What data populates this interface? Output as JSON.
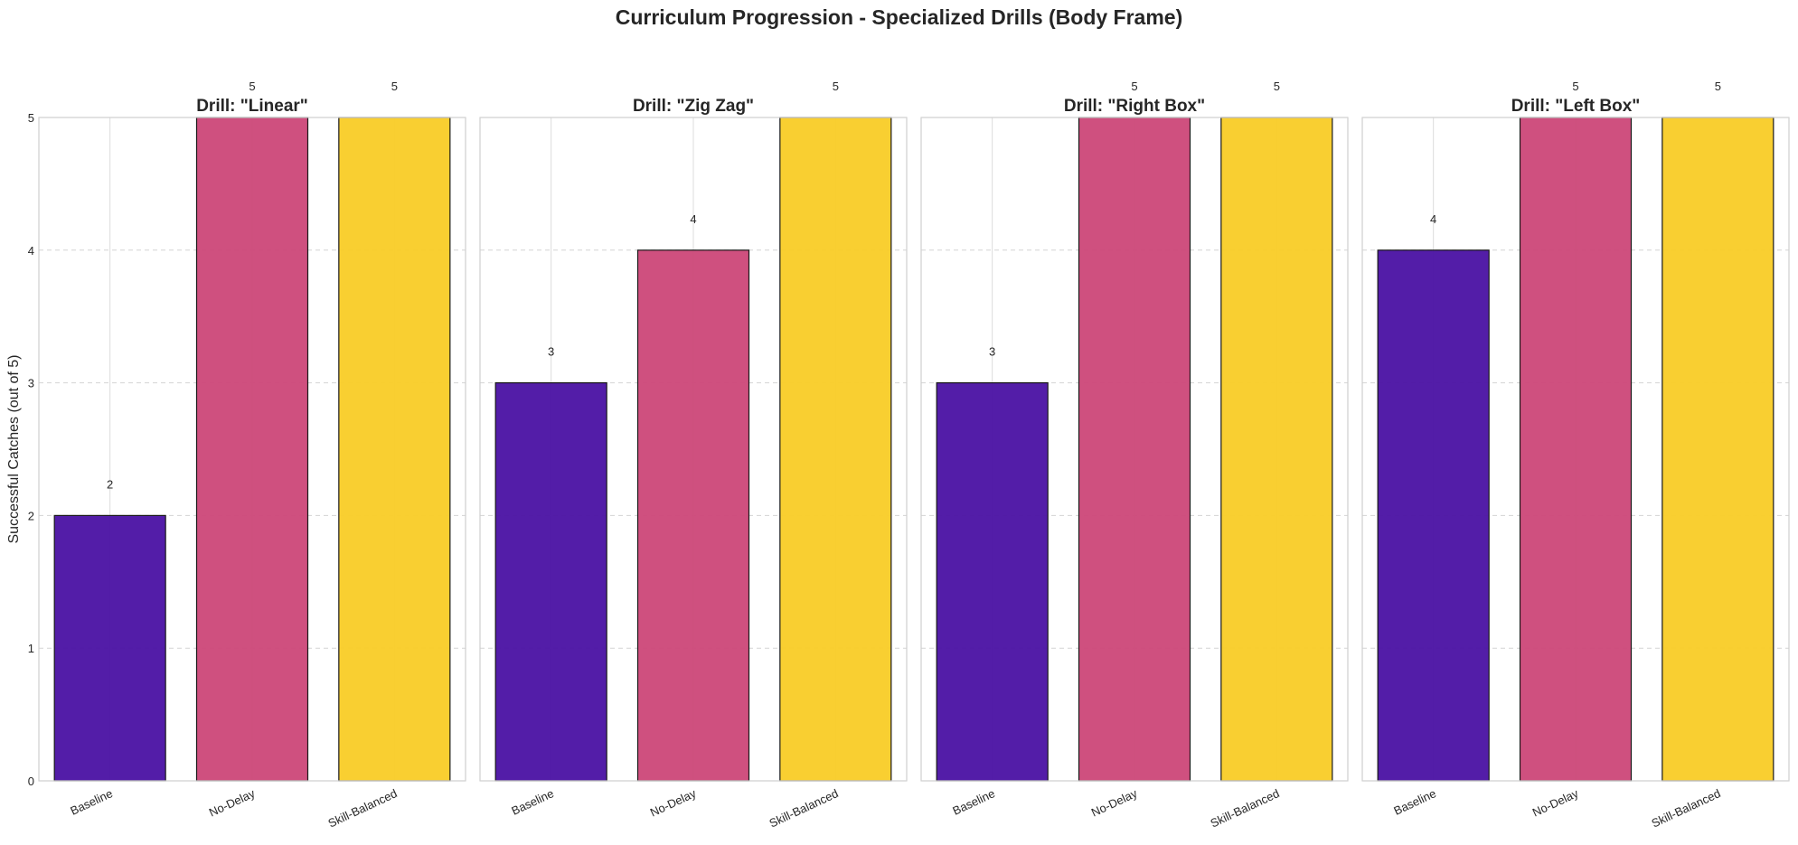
{
  "figure": {
    "title": "Curriculum Progression - Specialized Drills (Body Frame)"
  },
  "chart_data": [
    {
      "type": "bar",
      "title": "Drill: \"Linear\"",
      "categories": [
        "Baseline",
        "No-Delay",
        "Skill-Balanced"
      ],
      "values": [
        2,
        5,
        5
      ],
      "colors": [
        "#4a11a3",
        "#cc4778",
        "#f9cc26"
      ],
      "ylabel": "Successful Catches (out of 5)",
      "ylim": [
        0,
        5
      ],
      "yticks": [
        0,
        1,
        2,
        3,
        4,
        5
      ],
      "grid": true,
      "data_labels": true
    },
    {
      "type": "bar",
      "title": "Drill: \"Zig Zag\"",
      "categories": [
        "Baseline",
        "No-Delay",
        "Skill-Balanced"
      ],
      "values": [
        3,
        4,
        5
      ],
      "colors": [
        "#4a11a3",
        "#cc4778",
        "#f9cc26"
      ],
      "ylim": [
        0,
        5
      ],
      "grid": true,
      "data_labels": true
    },
    {
      "type": "bar",
      "title": "Drill: \"Right Box\"",
      "categories": [
        "Baseline",
        "No-Delay",
        "Skill-Balanced"
      ],
      "values": [
        3,
        5,
        5
      ],
      "colors": [
        "#4a11a3",
        "#cc4778",
        "#f9cc26"
      ],
      "ylim": [
        0,
        5
      ],
      "grid": true,
      "data_labels": true
    },
    {
      "type": "bar",
      "title": "Drill: \"Left Box\"",
      "categories": [
        "Baseline",
        "No-Delay",
        "Skill-Balanced"
      ],
      "values": [
        4,
        5,
        5
      ],
      "colors": [
        "#4a11a3",
        "#cc4778",
        "#f9cc26"
      ],
      "ylim": [
        0,
        5
      ],
      "grid": true,
      "data_labels": true
    }
  ]
}
